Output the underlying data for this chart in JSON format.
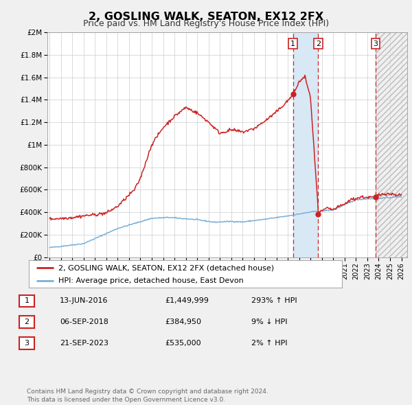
{
  "title": "2, GOSLING WALK, SEATON, EX12 2FX",
  "subtitle": "Price paid vs. HM Land Registry's House Price Index (HPI)",
  "title_fontsize": 11.5,
  "subtitle_fontsize": 9,
  "hpi_color": "#7ab0d8",
  "price_color": "#cc2222",
  "background_color": "#f0f0f0",
  "plot_bg_color": "#ffffff",
  "grid_color": "#cccccc",
  "ylim": [
    0,
    2000000
  ],
  "yticks": [
    0,
    200000,
    400000,
    600000,
    800000,
    1000000,
    1200000,
    1400000,
    1600000,
    1800000,
    2000000
  ],
  "ytick_labels": [
    "£0",
    "£200K",
    "£400K",
    "£600K",
    "£800K",
    "£1M",
    "£1.2M",
    "£1.4M",
    "£1.6M",
    "£1.8M",
    "£2M"
  ],
  "xmin": 1994.8,
  "xmax": 2026.5,
  "transactions": [
    {
      "num": 1,
      "date": "13-JUN-2016",
      "x": 2016.45,
      "price": 1449999,
      "pct": "293%",
      "dir": "↑"
    },
    {
      "num": 2,
      "date": "06-SEP-2018",
      "x": 2018.67,
      "price": 384950,
      "pct": "9%",
      "dir": "↓"
    },
    {
      "num": 3,
      "date": "21-SEP-2023",
      "x": 2023.72,
      "price": 535000,
      "pct": "2%",
      "dir": "↑"
    }
  ],
  "legend_label_price": "2, GOSLING WALK, SEATON, EX12 2FX (detached house)",
  "legend_label_hpi": "HPI: Average price, detached house, East Devon",
  "footnote": "Contains HM Land Registry data © Crown copyright and database right 2024.\nThis data is licensed under the Open Government Licence v3.0.",
  "shaded_region_color": "#d8e8f5",
  "hatch_color": "#dedede"
}
